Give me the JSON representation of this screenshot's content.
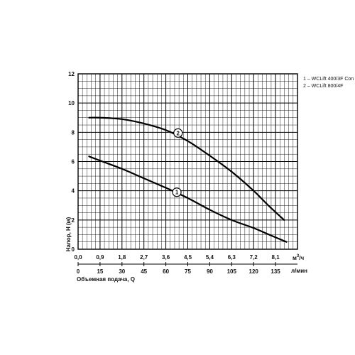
{
  "chart_data": {
    "type": "line",
    "ylabel": "Напор, H (м)",
    "xlabel_top_unit_base": "м",
    "xlabel_top_unit_exp": "3",
    "xlabel_top_unit_tail": "/ч",
    "xlabel_bottom": "Объемная подача, Q",
    "xlabel_bottom_unit": "л/мин",
    "y_ticks": [
      "12",
      "10",
      "8",
      "6",
      "4",
      "2",
      "0"
    ],
    "x_ticks_top": [
      "0,0",
      "0,9",
      "1,8",
      "2,7",
      "3,6",
      "4,5",
      "5,4",
      "6,3",
      "7,2",
      "8,1"
    ],
    "x_ticks_bottom": [
      "0",
      "15",
      "30",
      "45",
      "60",
      "75",
      "90",
      "105",
      "120",
      "135"
    ],
    "xlim": [
      0,
      9.0
    ],
    "ylim": [
      0,
      12
    ],
    "grid": true,
    "legend_position": "top-right",
    "legend": [
      "1 – WCLift 400/3F Con",
      "2 – WCLift 800/4F"
    ],
    "series": [
      {
        "marker_label": "1",
        "marker_at": [
          4.05,
          3.9
        ],
        "x": [
          0.45,
          1.0,
          1.8,
          2.7,
          3.6,
          4.5,
          5.4,
          6.3,
          7.2,
          7.9,
          8.55
        ],
        "y": [
          6.35,
          6.0,
          5.5,
          4.85,
          4.2,
          3.5,
          2.7,
          2.0,
          1.45,
          0.95,
          0.5
        ]
      },
      {
        "marker_label": "2",
        "marker_at": [
          4.1,
          7.95
        ],
        "x": [
          0.45,
          0.9,
          1.8,
          2.7,
          3.6,
          4.5,
          5.4,
          6.3,
          7.2,
          7.8,
          8.45
        ],
        "y": [
          9.0,
          9.0,
          8.9,
          8.6,
          8.15,
          7.4,
          6.4,
          5.3,
          4.0,
          3.0,
          2.0
        ]
      }
    ]
  }
}
